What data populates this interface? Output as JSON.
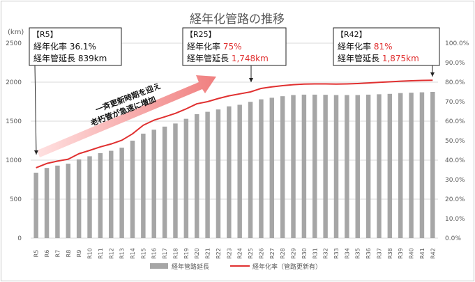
{
  "chart_data": {
    "type": "bar+line",
    "title": "経年化管路の推移",
    "y_left_unit": "(km)",
    "y_left_range": [
      0,
      2500
    ],
    "y_left_ticks": [
      "0",
      "500",
      "1000",
      "1500",
      "2000",
      "2500"
    ],
    "y_right_range": [
      0,
      100
    ],
    "y_right_ticks": [
      "0.0%",
      "10.0%",
      "20.0%",
      "30.0%",
      "40.0%",
      "50.0%",
      "60.0%",
      "70.0%",
      "80.0%",
      "90.0%",
      "100.0%"
    ],
    "grid": true,
    "legend_position": "bottom",
    "categories": [
      "R5",
      "R6",
      "R7",
      "R8",
      "R9",
      "R10",
      "R11",
      "R12",
      "R13",
      "R14",
      "R15",
      "R16",
      "R17",
      "R18",
      "R19",
      "R20",
      "R21",
      "R22",
      "R23",
      "R24",
      "R25",
      "R26",
      "R27",
      "R28",
      "R29",
      "R30",
      "R31",
      "R32",
      "R33",
      "R34",
      "R35",
      "R36",
      "R37",
      "R38",
      "R39",
      "R40",
      "R41",
      "R42"
    ],
    "series": [
      {
        "name": "経年管路延長",
        "kind": "bar",
        "axis": "left",
        "color": "#a6a6a6",
        "values": [
          839,
          900,
          930,
          955,
          1010,
          1050,
          1090,
          1120,
          1160,
          1250,
          1340,
          1390,
          1430,
          1470,
          1530,
          1590,
          1620,
          1650,
          1690,
          1710,
          1748,
          1780,
          1800,
          1820,
          1835,
          1840,
          1840,
          1838,
          1835,
          1835,
          1835,
          1840,
          1845,
          1850,
          1860,
          1865,
          1870,
          1875
        ]
      },
      {
        "name": "経年化率（管路更新有）",
        "kind": "line",
        "axis": "right",
        "color": "#e03030",
        "values": [
          36.1,
          38.3,
          39.5,
          40.5,
          43.3,
          45.0,
          46.8,
          48.3,
          50.2,
          53.5,
          57.9,
          60.5,
          62.2,
          64.0,
          66.3,
          68.9,
          70.0,
          71.6,
          73.0,
          74.0,
          75.0,
          76.8,
          77.6,
          78.2,
          78.7,
          79.0,
          79.1,
          79.1,
          79.0,
          79.1,
          79.3,
          79.6,
          79.9,
          80.2,
          80.5,
          80.7,
          80.9,
          81.0
        ]
      }
    ],
    "annotations": [
      {
        "title": "【R5】",
        "line1_label": "経年化率 ",
        "line1_value": "36.1%",
        "line2_label": "経年管延長 ",
        "line2_value": "839km",
        "highlight": false
      },
      {
        "title": "【R25】",
        "line1_label": "経年化率 ",
        "line1_value": "75%",
        "line2_label": "経年管延長 ",
        "line2_value": "1,748km",
        "highlight": true
      },
      {
        "title": "【R42】",
        "line1_label": "経年化率 ",
        "line1_value": "81%",
        "line2_label": "経年管延長 ",
        "line2_value": "1,875km",
        "highlight": true
      }
    ],
    "arrow_text": [
      "一斉更新時期を迎え",
      "老朽管が急速に増加"
    ]
  }
}
